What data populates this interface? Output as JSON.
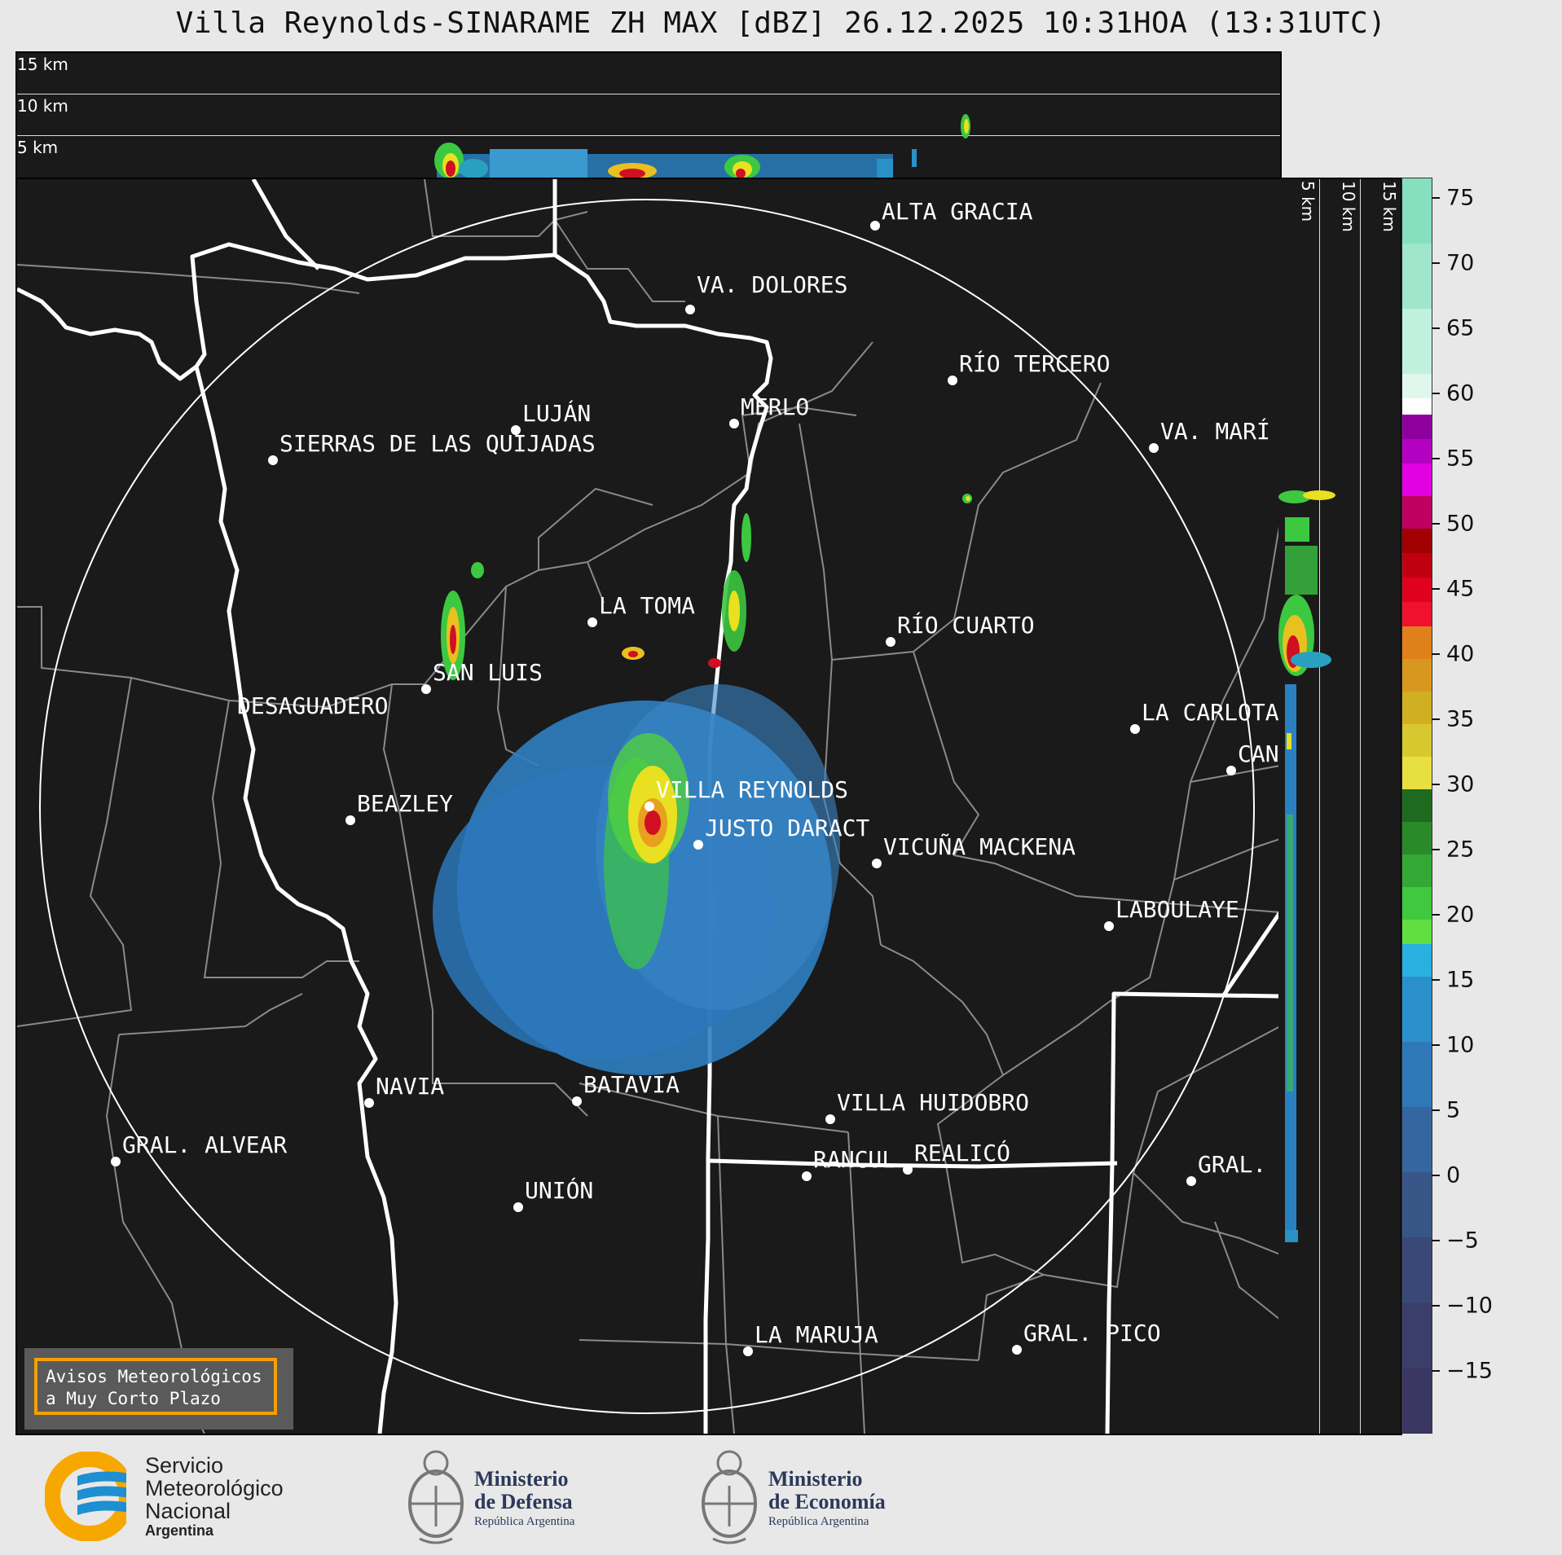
{
  "title": "Villa Reynolds-SINARAME ZH MAX [dBZ] 26.12.2025 10:31HOA (13:31UTC)",
  "altitude_labels": [
    "15 km",
    "10 km",
    "5 km"
  ],
  "side_altitude_labels": [
    "5 km",
    "10 km",
    "15 km"
  ],
  "colorbar_ticks": [
    "75",
    "70",
    "65",
    "60",
    "55",
    "50",
    "45",
    "40",
    "35",
    "30",
    "25",
    "20",
    "15",
    "10",
    "5",
    "0",
    "−5",
    "−10",
    "−15"
  ],
  "cities": [
    {
      "name": "ALTA GRACIA"
    },
    {
      "name": "VA. DOLORES"
    },
    {
      "name": "RÍO TERCERO"
    },
    {
      "name": "LUJÁN"
    },
    {
      "name": "MERLO"
    },
    {
      "name": "SIERRAS DE LAS QUIJADAS"
    },
    {
      "name": "VA. MARÍ"
    },
    {
      "name": "LA TOMA"
    },
    {
      "name": "RÍO CUARTO"
    },
    {
      "name": "SAN LUIS"
    },
    {
      "name": "DESAGUADERO"
    },
    {
      "name": "LA CARLOTA"
    },
    {
      "name": "CAN"
    },
    {
      "name": "VILLA REYNOLDS"
    },
    {
      "name": "BEAZLEY"
    },
    {
      "name": "JUSTO DARACT"
    },
    {
      "name": "VICUÑA MACKENA"
    },
    {
      "name": "LABOULAYE"
    },
    {
      "name": "NAVIA"
    },
    {
      "name": "BATAVIA"
    },
    {
      "name": "VILLA HUIDOBRO"
    },
    {
      "name": "GRAL. ALVEAR"
    },
    {
      "name": "RANCUL"
    },
    {
      "name": "REALICÓ"
    },
    {
      "name": "GRAL."
    },
    {
      "name": "UNIÓN"
    },
    {
      "name": "LA MARUJA"
    },
    {
      "name": "GRAL. PICO"
    }
  ],
  "warning": {
    "line1": "Avisos Meteorológicos",
    "line2": "a Muy Corto Plazo"
  },
  "footer": {
    "smn_line1": "Servicio",
    "smn_line2": "Meteorológico",
    "smn_line3": "Nacional",
    "smn_line4": "Argentina",
    "defensa_line1": "Ministerio",
    "defensa_line2": "de Defensa",
    "defensa_line3": "República Argentina",
    "economia_line1": "Ministerio",
    "economia_line2": "de Economía",
    "economia_line3": "República Argentina"
  },
  "colors": {
    "panel_bg": "#1a1a1a",
    "boundary_major": "#ffffff",
    "boundary_minor": "#8a8a8a",
    "smn_orange": "#f7a800",
    "smn_blue": "#1e8fd0",
    "ministry_blue": "#2b3a5a"
  }
}
